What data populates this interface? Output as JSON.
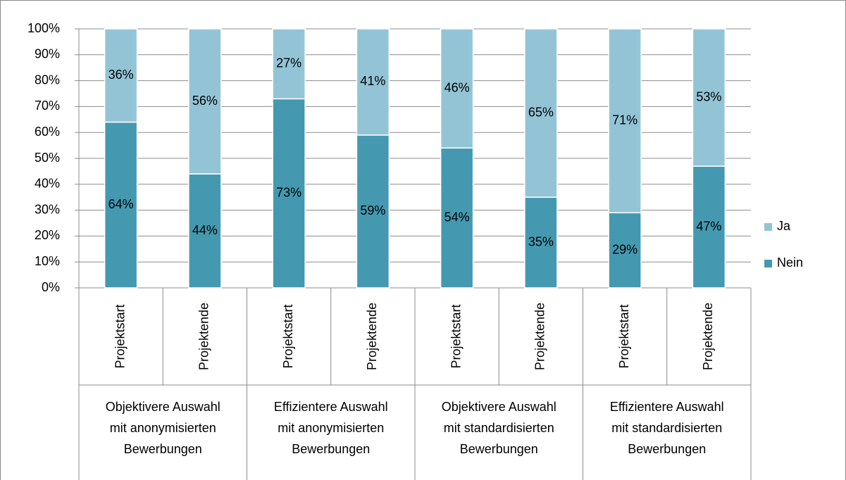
{
  "chart_data": {
    "type": "stacked_bar",
    "categories": [
      "Projektstart",
      "Projektende",
      "Projektstart",
      "Projektende",
      "Projektstart",
      "Projektende",
      "Projektstart",
      "Projektende"
    ],
    "groups": [
      [
        "Objektivere Auswahl",
        "mit anonymisierten",
        "Bewerbungen"
      ],
      [
        "Effizientere Auswahl",
        "mit anonymisierten",
        "Bewerbungen"
      ],
      [
        "Objektivere Auswahl",
        "mit standardisierten",
        "Bewerbungen"
      ],
      [
        "Effizientere Auswahl",
        "mit standardisierten",
        "Bewerbungen"
      ]
    ],
    "series": [
      {
        "name": "Nein",
        "color": "#4499b0",
        "values": [
          64,
          44,
          73,
          59,
          54,
          35,
          29,
          47
        ],
        "value_labels": [
          "64%",
          "44%",
          "73%",
          "59%",
          "54%",
          "35%",
          "29%",
          "47%"
        ]
      },
      {
        "name": "Ja",
        "color": "#93c4d6",
        "values": [
          36,
          56,
          27,
          41,
          46,
          65,
          71,
          53
        ],
        "value_labels": [
          "36%",
          "56%",
          "27%",
          "41%",
          "46%",
          "65%",
          "71%",
          "53%"
        ]
      }
    ],
    "ylim": [
      0,
      100
    ],
    "yticks": [
      {
        "value": 0,
        "label": "0%"
      },
      {
        "value": 10,
        "label": "10%"
      },
      {
        "value": 20,
        "label": "20%"
      },
      {
        "value": 30,
        "label": "30%"
      },
      {
        "value": 40,
        "label": "40%"
      },
      {
        "value": 50,
        "label": "50%"
      },
      {
        "value": 60,
        "label": "60%"
      },
      {
        "value": 70,
        "label": "70%"
      },
      {
        "value": 80,
        "label": "80%"
      },
      {
        "value": 90,
        "label": "90%"
      },
      {
        "value": 100,
        "label": "100%"
      }
    ],
    "grid": true,
    "legend": "right"
  }
}
